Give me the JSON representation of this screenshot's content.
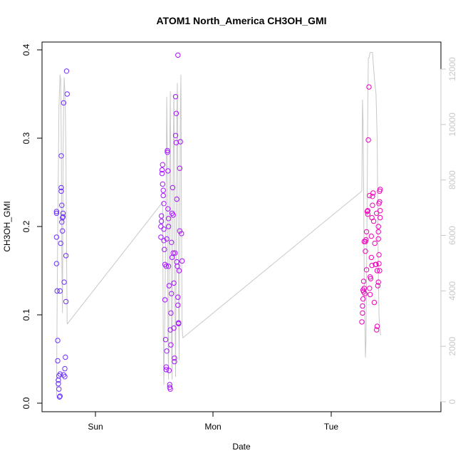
{
  "chart_data": {
    "type": "scatter",
    "title": "ATOM1 North_America CH3OH_GMI",
    "xlabel": "Date",
    "ylabel": "CH3OH_GMI",
    "x_ticks": [
      "Sun",
      "Mon",
      "Tue"
    ],
    "y_ticks": [
      "0.0",
      "0.1",
      "0.2",
      "0.3",
      "0.4"
    ],
    "y2_ticks": [
      "0",
      "2000",
      "4000",
      "6000",
      "8000",
      "10000",
      "12000"
    ],
    "ylim": [
      0,
      0.4
    ],
    "y2lim": [
      0,
      12000
    ],
    "x_unit": "days after Sunday 00:00",
    "xlim": [
      -0.4,
      2.9
    ],
    "grid": false,
    "colors": {
      "points_start": "#6633ff",
      "points_mid": "#cc00ff",
      "points_end": "#ff0099",
      "altitude_line": "#c8c8c8",
      "frame": "#000000"
    },
    "series": [
      {
        "name": "",
        "kind": "points",
        "points": [
          [
            -0.33,
            0.217
          ],
          [
            -0.33,
            0.215
          ],
          [
            -0.33,
            0.188
          ],
          [
            -0.33,
            0.158
          ],
          [
            -0.325,
            0.127
          ],
          [
            -0.32,
            0.071
          ],
          [
            -0.32,
            0.048
          ],
          [
            -0.315,
            0.026
          ],
          [
            -0.315,
            0.022
          ],
          [
            -0.31,
            0.031
          ],
          [
            -0.31,
            0.016
          ],
          [
            -0.305,
            0.007
          ],
          [
            -0.3,
            0.008
          ],
          [
            -0.3,
            0.033
          ],
          [
            -0.3,
            0.127
          ],
          [
            -0.295,
            0.181
          ],
          [
            -0.29,
            0.28
          ],
          [
            -0.29,
            0.244
          ],
          [
            -0.29,
            0.24
          ],
          [
            -0.285,
            0.224
          ],
          [
            -0.285,
            0.205
          ],
          [
            -0.28,
            0.195
          ],
          [
            -0.28,
            0.21
          ],
          [
            -0.275,
            0.215
          ],
          [
            -0.275,
            0.211
          ],
          [
            -0.27,
            0.34
          ],
          [
            -0.27,
            0.032
          ],
          [
            -0.265,
            0.137
          ],
          [
            -0.26,
            0.03
          ],
          [
            -0.26,
            0.039
          ],
          [
            -0.255,
            0.052
          ],
          [
            -0.25,
            0.167
          ],
          [
            -0.25,
            0.115
          ],
          [
            -0.245,
            0.376
          ],
          [
            -0.24,
            0.35
          ],
          [
            0.555,
            0.188
          ],
          [
            0.555,
            0.2
          ],
          [
            0.56,
            0.206
          ],
          [
            0.56,
            0.212
          ],
          [
            0.565,
            0.26
          ],
          [
            0.565,
            0.264
          ],
          [
            0.57,
            0.27
          ],
          [
            0.57,
            0.248
          ],
          [
            0.575,
            0.241
          ],
          [
            0.575,
            0.235
          ],
          [
            0.58,
            0.226
          ],
          [
            0.58,
            0.197
          ],
          [
            0.585,
            0.174
          ],
          [
            0.59,
            0.157
          ],
          [
            0.59,
            0.117
          ],
          [
            0.595,
            0.072
          ],
          [
            0.6,
            0.041
          ],
          [
            0.6,
            0.038
          ],
          [
            0.605,
            0.059
          ],
          [
            0.61,
            0.286
          ],
          [
            0.61,
            0.284
          ],
          [
            0.615,
            0.263
          ],
          [
            0.615,
            0.22
          ],
          [
            0.62,
            0.209
          ],
          [
            0.62,
            0.2
          ],
          [
            0.625,
            0.133
          ],
          [
            0.625,
            0.037
          ],
          [
            0.63,
            0.021
          ],
          [
            0.63,
            0.018
          ],
          [
            0.635,
            0.016
          ],
          [
            0.635,
            0.083
          ],
          [
            0.64,
            0.066
          ],
          [
            0.64,
            0.102
          ],
          [
            0.645,
            0.124
          ],
          [
            0.65,
            0.165
          ],
          [
            0.65,
            0.215
          ],
          [
            0.655,
            0.244
          ],
          [
            0.66,
            0.213
          ],
          [
            0.665,
            0.136
          ],
          [
            0.665,
            0.085
          ],
          [
            0.67,
            0.047
          ],
          [
            0.67,
            0.051
          ],
          [
            0.675,
            0.17
          ],
          [
            0.68,
            0.303
          ],
          [
            0.68,
            0.347
          ],
          [
            0.685,
            0.328
          ],
          [
            0.685,
            0.295
          ],
          [
            0.69,
            0.231
          ],
          [
            0.69,
            0.16
          ],
          [
            0.695,
            0.155
          ],
          [
            0.7,
            0.12
          ],
          [
            0.7,
            0.111
          ],
          [
            0.705,
            0.09
          ],
          [
            0.705,
            0.091
          ],
          [
            0.71,
            0.15
          ],
          [
            0.715,
            0.195
          ],
          [
            0.715,
            0.266
          ],
          [
            0.72,
            0.296
          ],
          [
            0.73,
            0.192
          ],
          [
            0.735,
            0.161
          ],
          [
            0.7,
            0.394
          ],
          [
            0.6,
            0.155
          ],
          [
            0.62,
            0.155
          ],
          [
            0.66,
            0.17
          ],
          [
            0.605,
            0.186
          ],
          [
            0.645,
            0.182
          ],
          [
            0.58,
            0.184
          ],
          [
            2.26,
            0.092
          ],
          [
            2.265,
            0.102
          ],
          [
            2.265,
            0.11
          ],
          [
            2.27,
            0.118
          ],
          [
            2.27,
            0.128
          ],
          [
            2.275,
            0.126
          ],
          [
            2.275,
            0.138
          ],
          [
            2.28,
            0.13
          ],
          [
            2.28,
            0.183
          ],
          [
            2.285,
            0.124
          ],
          [
            2.29,
            0.172
          ],
          [
            2.29,
            0.183
          ],
          [
            2.295,
            0.185
          ],
          [
            2.3,
            0.151
          ],
          [
            2.3,
            0.194
          ],
          [
            2.305,
            0.217
          ],
          [
            2.31,
            0.214
          ],
          [
            2.31,
            0.218
          ],
          [
            2.315,
            0.298
          ],
          [
            2.32,
            0.358
          ],
          [
            2.325,
            0.13
          ],
          [
            2.33,
            0.143
          ],
          [
            2.335,
            0.141
          ],
          [
            2.34,
            0.165
          ],
          [
            2.34,
            0.189
          ],
          [
            2.345,
            0.156
          ],
          [
            2.35,
            0.224
          ],
          [
            2.35,
            0.234
          ],
          [
            2.355,
            0.238
          ],
          [
            2.36,
            0.206
          ],
          [
            2.365,
            0.114
          ],
          [
            2.37,
            0.181
          ],
          [
            2.375,
            0.157
          ],
          [
            2.38,
            0.157
          ],
          [
            2.385,
            0.083
          ],
          [
            2.39,
            0.087
          ],
          [
            2.395,
            0.133
          ],
          [
            2.4,
            0.137
          ],
          [
            2.4,
            0.186
          ],
          [
            2.4,
            0.194
          ],
          [
            2.405,
            0.226
          ],
          [
            2.41,
            0.228
          ],
          [
            2.41,
            0.24
          ],
          [
            2.415,
            0.242
          ],
          [
            2.415,
            0.218
          ],
          [
            2.415,
            0.21
          ],
          [
            2.405,
            0.168
          ],
          [
            2.41,
            0.15
          ],
          [
            2.405,
            0.158
          ],
          [
            2.4,
            0.2
          ],
          [
            2.39,
            0.15
          ],
          [
            2.385,
            0.215
          ],
          [
            2.325,
            0.235
          ],
          [
            2.33,
            0.123
          ],
          [
            2.345,
            0.21
          ]
        ]
      },
      {
        "name": "",
        "kind": "line",
        "axis": "right",
        "points": [
          [
            -0.33,
            200
          ],
          [
            -0.325,
            3500
          ],
          [
            -0.32,
            6200
          ],
          [
            -0.315,
            8200
          ],
          [
            -0.31,
            10500
          ],
          [
            -0.305,
            11200
          ],
          [
            -0.3,
            11800
          ],
          [
            -0.295,
            11600
          ],
          [
            -0.29,
            9500
          ],
          [
            -0.285,
            5200
          ],
          [
            -0.28,
            3200
          ],
          [
            -0.275,
            8500
          ],
          [
            -0.27,
            10800
          ],
          [
            -0.265,
            11700
          ],
          [
            -0.26,
            11200
          ],
          [
            -0.255,
            10400
          ],
          [
            -0.25,
            8800
          ],
          [
            -0.245,
            5200
          ],
          [
            -0.24,
            2800
          ],
          [
            0.57,
            7200
          ],
          [
            0.575,
            2400
          ],
          [
            0.58,
            600
          ],
          [
            0.59,
            3500
          ],
          [
            0.6,
            7800
          ],
          [
            0.605,
            11000
          ],
          [
            0.61,
            8500
          ],
          [
            0.615,
            2500
          ],
          [
            0.62,
            800
          ],
          [
            0.625,
            5200
          ],
          [
            0.63,
            9000
          ],
          [
            0.635,
            11200
          ],
          [
            0.64,
            7500
          ],
          [
            0.645,
            2200
          ],
          [
            0.65,
            800
          ],
          [
            0.655,
            4500
          ],
          [
            0.66,
            8800
          ],
          [
            0.665,
            11100
          ],
          [
            0.67,
            7800
          ],
          [
            0.675,
            3300
          ],
          [
            0.68,
            900
          ],
          [
            0.685,
            5500
          ],
          [
            0.69,
            10100
          ],
          [
            0.695,
            11500
          ],
          [
            0.7,
            8000
          ],
          [
            0.705,
            3600
          ],
          [
            0.71,
            1500
          ],
          [
            0.715,
            6000
          ],
          [
            0.72,
            10400
          ],
          [
            0.725,
            11800
          ],
          [
            0.73,
            6500
          ],
          [
            0.735,
            2800
          ],
          [
            0.74,
            2300
          ],
          [
            2.26,
            7600
          ],
          [
            2.265,
            10900
          ],
          [
            2.27,
            10100
          ],
          [
            2.275,
            7800
          ],
          [
            2.28,
            4200
          ],
          [
            2.285,
            3000
          ],
          [
            2.29,
            1600
          ],
          [
            2.295,
            2200
          ],
          [
            2.3,
            4500
          ],
          [
            2.305,
            7500
          ],
          [
            2.31,
            10500
          ],
          [
            2.315,
            12400
          ],
          [
            2.32,
            12400
          ],
          [
            2.33,
            12600
          ],
          [
            2.34,
            12600
          ],
          [
            2.35,
            12600
          ],
          [
            2.36,
            12000
          ],
          [
            2.37,
            11500
          ],
          [
            2.38,
            11100
          ],
          [
            2.39,
            9500
          ],
          [
            2.395,
            6800
          ],
          [
            2.4,
            4600
          ],
          [
            2.405,
            3200
          ],
          [
            2.41,
            2700
          ],
          [
            2.42,
            2400
          ]
        ],
        "bridges": [
          [
            [
              -0.24,
              2800
            ],
            [
              0.57,
              7200
            ]
          ],
          [
            [
              0.74,
              2300
            ],
            [
              2.26,
              7600
            ]
          ]
        ]
      }
    ]
  }
}
